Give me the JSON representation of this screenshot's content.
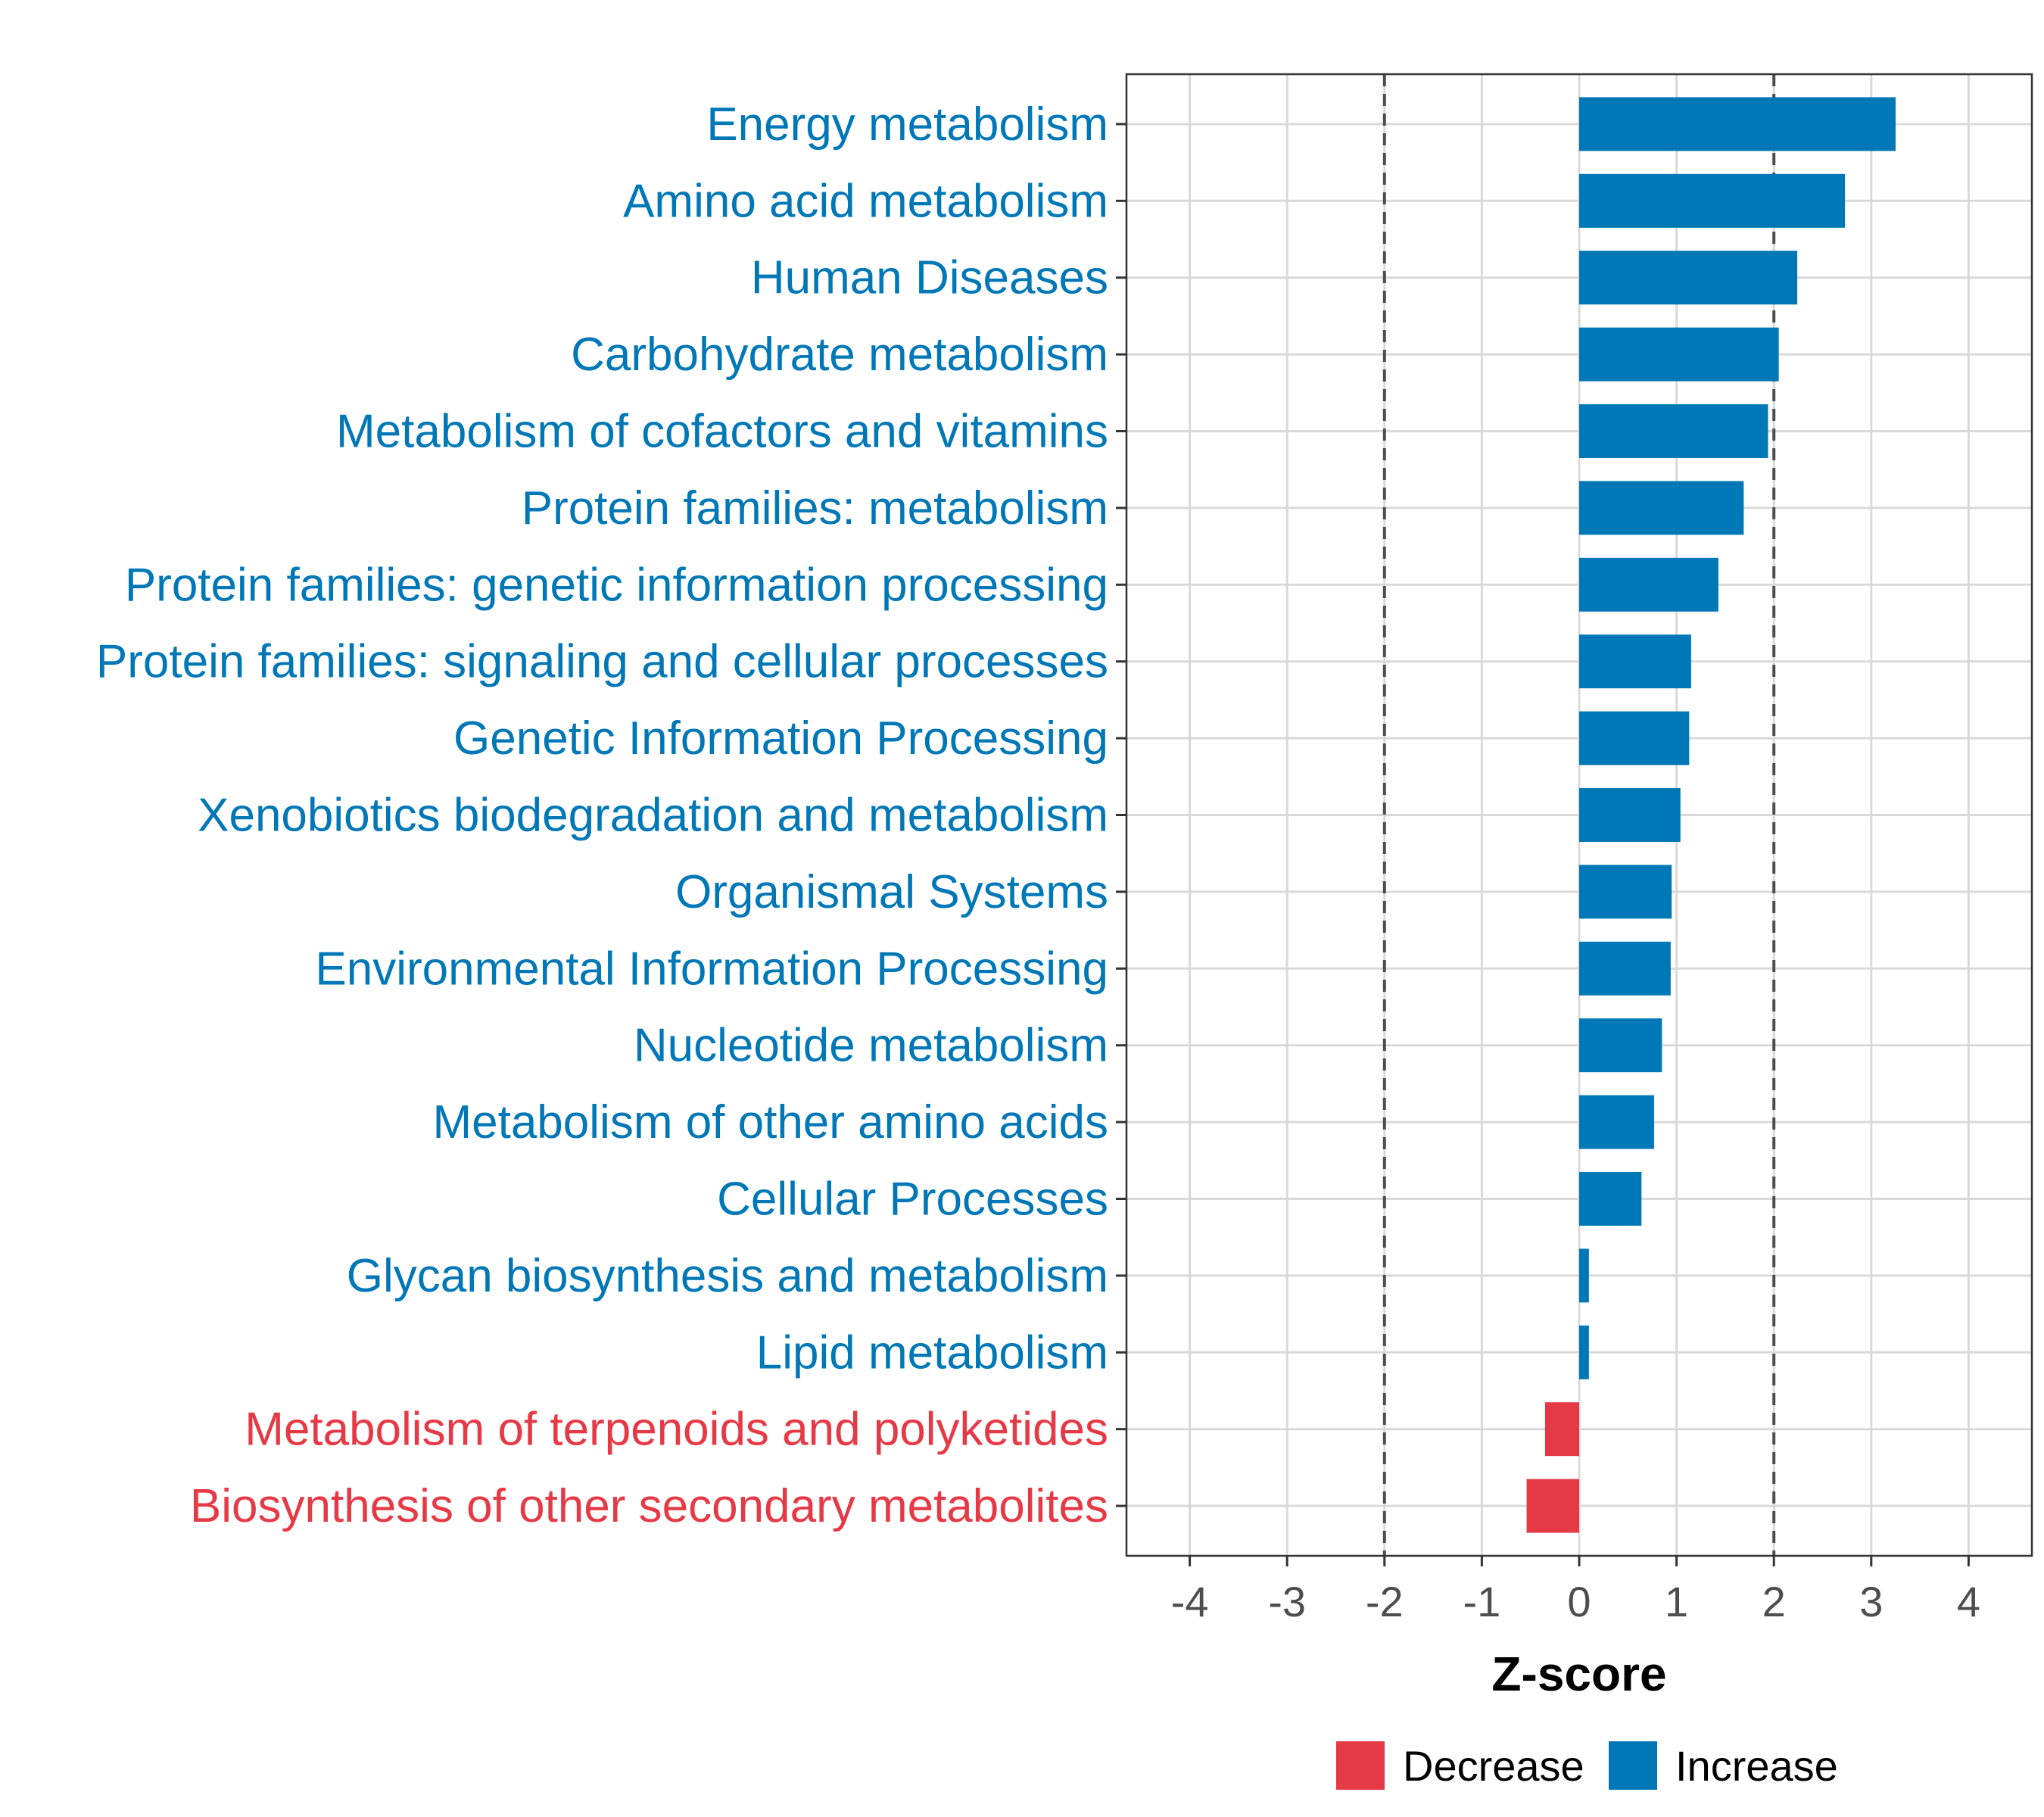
{
  "chart_data": {
    "type": "bar",
    "orientation": "horizontal",
    "title": "",
    "xlabel": "Z-score",
    "ylabel": "",
    "xlim": [
      -4.65,
      4.65
    ],
    "xticks": [
      -4,
      -3,
      -2,
      -1,
      0,
      1,
      2,
      3,
      4
    ],
    "threshold_lines": [
      -2,
      2
    ],
    "grid": true,
    "categories": [
      "Energy metabolism",
      "Amino acid metabolism",
      "Human Diseases",
      "Carbohydrate metabolism",
      "Metabolism of cofactors and vitamins",
      "Protein families: metabolism",
      "Protein families: genetic information processing",
      "Protein families: signaling and cellular processes",
      "Genetic Information Processing",
      "Xenobiotics biodegradation and metabolism",
      "Organismal Systems",
      "Environmental Information Processing",
      "Nucleotide metabolism",
      "Metabolism of other amino acids",
      "Cellular Processes",
      "Glycan biosynthesis and metabolism",
      "Lipid metabolism",
      "Metabolism of terpenoids and polyketides",
      "Biosynthesis of other secondary metabolites"
    ],
    "values": [
      3.25,
      2.73,
      2.24,
      2.05,
      1.94,
      1.69,
      1.43,
      1.15,
      1.13,
      1.04,
      0.95,
      0.94,
      0.85,
      0.77,
      0.64,
      0.1,
      0.1,
      -0.35,
      -0.54
    ],
    "groups": [
      "Increase",
      "Increase",
      "Increase",
      "Increase",
      "Increase",
      "Increase",
      "Increase",
      "Increase",
      "Increase",
      "Increase",
      "Increase",
      "Increase",
      "Increase",
      "Increase",
      "Increase",
      "Increase",
      "Increase",
      "Decrease",
      "Decrease"
    ],
    "legend": {
      "position": "bottom",
      "entries": [
        {
          "label": "Decrease",
          "color": "#E63946"
        },
        {
          "label": "Increase",
          "color": "#0077B6"
        }
      ]
    },
    "colors": {
      "Decrease": "#E63946",
      "Increase": "#0077B6"
    }
  }
}
